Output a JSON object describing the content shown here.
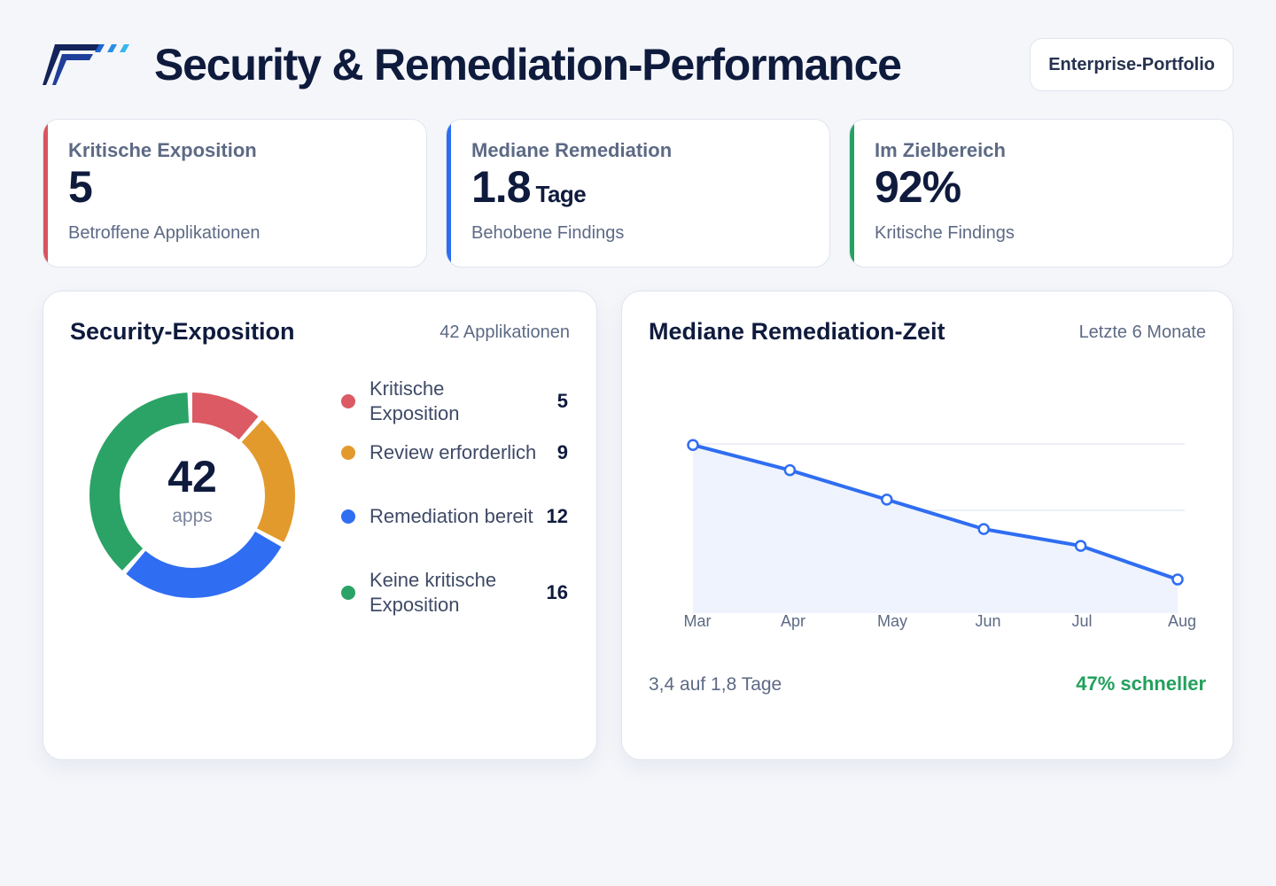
{
  "header": {
    "title": "Security & Remediation-Performance",
    "portfolio_button": "Enterprise-Portfolio"
  },
  "kpis": [
    {
      "label": "Kritische Exposition",
      "value": "5",
      "unit": "",
      "sub": "Betroffene Applikationen",
      "accent": "#d9545e"
    },
    {
      "label": "Mediane Remediation",
      "value": "1.8",
      "unit": "Tage",
      "sub": "Behobene Findings",
      "accent": "#2d6df0"
    },
    {
      "label": "Im Zielbereich",
      "value": "92%",
      "unit": "",
      "sub": "Kritische Findings",
      "accent": "#25a263"
    }
  ],
  "exposure_card": {
    "title": "Security-Exposition",
    "meta": "42 Applikationen",
    "center_value": "42",
    "center_unit": "apps"
  },
  "remediation_card": {
    "title": "Mediane Remediation-Zeit",
    "meta": "Letzte 6 Monate",
    "footer_left": "3,4 auf 1,8 Tage",
    "footer_right": "47% schneller"
  },
  "chart_data": [
    {
      "type": "pie",
      "variant": "donut",
      "title": "Security-Exposition",
      "categories": [
        "Kritische Exposition",
        "Review erforderlich",
        "Remediation bereit",
        "Keine kritische Exposition"
      ],
      "values": [
        5,
        9,
        12,
        16
      ],
      "colors": [
        "#dc5a63",
        "#e29a2c",
        "#2f6df2",
        "#2ba366"
      ],
      "total": 42,
      "legend": "right"
    },
    {
      "type": "area",
      "title": "Mediane Remediation-Zeit",
      "x": [
        "Mar",
        "Apr",
        "May",
        "Jun",
        "Jul",
        "Aug"
      ],
      "series": [
        {
          "values": [
            3.4,
            3.1,
            2.75,
            2.4,
            2.2,
            1.8
          ]
        }
      ],
      "ylim": [
        1.4,
        3.75
      ],
      "grid": true,
      "line_color": "#2f6df2",
      "fill_color": "#eef3fd"
    }
  ]
}
